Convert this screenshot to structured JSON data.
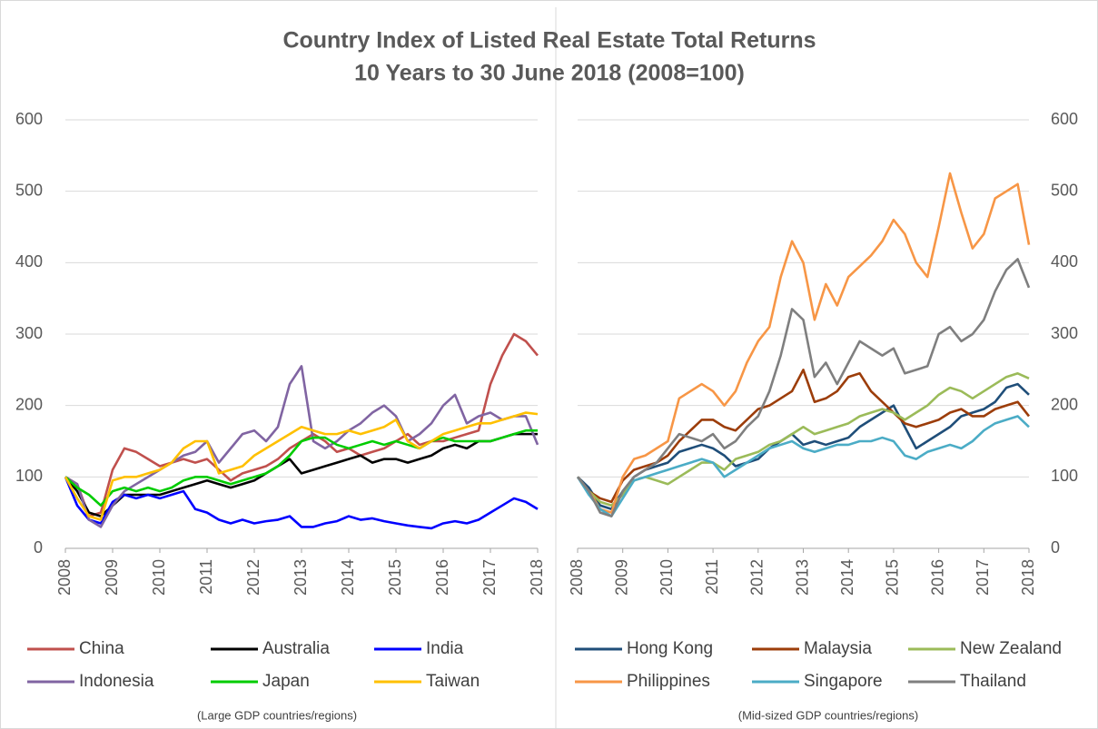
{
  "title": "Country Index of Listed Real Estate Total Returns",
  "subtitle": "10 Years to 30 June 2018 (2008=100)",
  "chart_data": [
    {
      "type": "line",
      "note": "(Large GDP countries/regions)",
      "yaxis_side": "left",
      "grid": true,
      "x": [
        2008,
        2008.25,
        2008.5,
        2008.75,
        2009,
        2009.25,
        2009.5,
        2009.75,
        2010,
        2010.25,
        2010.5,
        2010.75,
        2011,
        2011.25,
        2011.5,
        2011.75,
        2012,
        2012.25,
        2012.5,
        2012.75,
        2013,
        2013.25,
        2013.5,
        2013.75,
        2014,
        2014.25,
        2014.5,
        2014.75,
        2015,
        2015.25,
        2015.5,
        2015.75,
        2016,
        2016.25,
        2016.5,
        2016.75,
        2017,
        2017.25,
        2017.5,
        2017.75,
        2018
      ],
      "xlim": [
        2008,
        2018
      ],
      "xticks": [
        2008,
        2009,
        2010,
        2011,
        2012,
        2013,
        2014,
        2015,
        2016,
        2017,
        2018
      ],
      "ylim": [
        0,
        600
      ],
      "yticks": [
        0,
        100,
        200,
        300,
        400,
        500,
        600
      ],
      "series": [
        {
          "name": "China",
          "color": "#c0504d",
          "values": [
            100,
            90,
            45,
            50,
            110,
            140,
            135,
            125,
            115,
            120,
            125,
            120,
            125,
            110,
            95,
            105,
            110,
            115,
            125,
            140,
            150,
            160,
            150,
            135,
            140,
            130,
            135,
            140,
            150,
            160,
            145,
            150,
            150,
            155,
            160,
            165,
            230,
            270,
            300,
            290,
            270
          ]
        },
        {
          "name": "Australia",
          "color": "#000000",
          "values": [
            100,
            80,
            50,
            45,
            60,
            75,
            75,
            75,
            75,
            80,
            85,
            90,
            95,
            90,
            85,
            90,
            95,
            105,
            115,
            125,
            105,
            110,
            115,
            120,
            125,
            130,
            120,
            125,
            125,
            120,
            125,
            130,
            140,
            145,
            140,
            150,
            150,
            155,
            160,
            160,
            160
          ]
        },
        {
          "name": "India",
          "color": "#0000ff",
          "values": [
            100,
            60,
            40,
            35,
            65,
            75,
            70,
            75,
            70,
            75,
            80,
            55,
            50,
            40,
            35,
            40,
            35,
            38,
            40,
            45,
            30,
            30,
            35,
            38,
            45,
            40,
            42,
            38,
            35,
            32,
            30,
            28,
            35,
            38,
            35,
            40,
            50,
            60,
            70,
            65,
            55
          ]
        },
        {
          "name": "Indonesia",
          "color": "#8064a2",
          "values": [
            100,
            90,
            40,
            30,
            60,
            80,
            90,
            100,
            110,
            120,
            130,
            135,
            150,
            120,
            140,
            160,
            165,
            150,
            170,
            230,
            255,
            150,
            140,
            150,
            165,
            175,
            190,
            200,
            185,
            150,
            160,
            175,
            200,
            215,
            175,
            185,
            190,
            180,
            185,
            185,
            145
          ]
        },
        {
          "name": "Japan",
          "color": "#00cc00",
          "values": [
            100,
            85,
            75,
            60,
            80,
            85,
            80,
            85,
            80,
            85,
            95,
            100,
            100,
            95,
            90,
            95,
            100,
            105,
            115,
            130,
            150,
            155,
            155,
            145,
            140,
            145,
            150,
            145,
            150,
            145,
            140,
            150,
            155,
            150,
            150,
            150,
            150,
            155,
            160,
            165,
            165
          ]
        },
        {
          "name": "Taiwan",
          "color": "#ffc000",
          "values": [
            100,
            70,
            45,
            40,
            95,
            100,
            100,
            105,
            110,
            120,
            140,
            150,
            150,
            105,
            110,
            115,
            130,
            140,
            150,
            160,
            170,
            165,
            160,
            160,
            165,
            160,
            165,
            170,
            180,
            150,
            140,
            150,
            160,
            165,
            170,
            175,
            175,
            180,
            185,
            190,
            188
          ]
        }
      ]
    },
    {
      "type": "line",
      "note": "(Mid-sized GDP countries/regions)",
      "yaxis_side": "right",
      "grid": true,
      "x": [
        2008,
        2008.25,
        2008.5,
        2008.75,
        2009,
        2009.25,
        2009.5,
        2009.75,
        2010,
        2010.25,
        2010.5,
        2010.75,
        2011,
        2011.25,
        2011.5,
        2011.75,
        2012,
        2012.25,
        2012.5,
        2012.75,
        2013,
        2013.25,
        2013.5,
        2013.75,
        2014,
        2014.25,
        2014.5,
        2014.75,
        2015,
        2015.25,
        2015.5,
        2015.75,
        2016,
        2016.25,
        2016.5,
        2016.75,
        2017,
        2017.25,
        2017.5,
        2017.75,
        2018
      ],
      "xlim": [
        2008,
        2018
      ],
      "xticks": [
        2008,
        2009,
        2010,
        2011,
        2012,
        2013,
        2014,
        2015,
        2016,
        2017,
        2018
      ],
      "ylim": [
        0,
        600
      ],
      "yticks": [
        0,
        100,
        200,
        300,
        400,
        500,
        600
      ],
      "series": [
        {
          "name": "Hong Kong",
          "color": "#1f4e79",
          "values": [
            100,
            85,
            60,
            55,
            80,
            100,
            110,
            115,
            120,
            135,
            140,
            145,
            140,
            130,
            115,
            120,
            125,
            140,
            150,
            160,
            145,
            150,
            145,
            150,
            155,
            170,
            180,
            190,
            200,
            170,
            140,
            150,
            160,
            170,
            185,
            190,
            195,
            205,
            225,
            230,
            215
          ]
        },
        {
          "name": "Malaysia",
          "color": "#9c3d0a",
          "values": [
            100,
            80,
            70,
            65,
            95,
            110,
            115,
            120,
            130,
            150,
            165,
            180,
            180,
            170,
            165,
            180,
            195,
            200,
            210,
            220,
            250,
            205,
            210,
            220,
            240,
            245,
            220,
            205,
            190,
            175,
            170,
            175,
            180,
            190,
            195,
            185,
            185,
            195,
            200,
            205,
            185
          ]
        },
        {
          "name": "New Zealand",
          "color": "#9bbb59",
          "values": [
            100,
            80,
            65,
            60,
            75,
            95,
            100,
            95,
            90,
            100,
            110,
            120,
            120,
            110,
            125,
            130,
            135,
            145,
            150,
            160,
            170,
            160,
            165,
            170,
            175,
            185,
            190,
            195,
            190,
            180,
            190,
            200,
            215,
            225,
            220,
            210,
            220,
            230,
            240,
            245,
            238
          ]
        },
        {
          "name": "Philippines",
          "color": "#f79646",
          "values": [
            100,
            80,
            55,
            50,
            100,
            125,
            130,
            140,
            150,
            210,
            220,
            230,
            220,
            200,
            220,
            260,
            290,
            310,
            380,
            430,
            400,
            320,
            370,
            340,
            380,
            395,
            410,
            430,
            460,
            440,
            400,
            380,
            450,
            525,
            470,
            420,
            440,
            490,
            500,
            510,
            425
          ]
        },
        {
          "name": "Singapore",
          "color": "#4bacc6",
          "values": [
            100,
            75,
            55,
            45,
            70,
            95,
            100,
            105,
            110,
            115,
            120,
            125,
            120,
            100,
            110,
            120,
            130,
            140,
            145,
            150,
            140,
            135,
            140,
            145,
            145,
            150,
            150,
            155,
            150,
            130,
            125,
            135,
            140,
            145,
            140,
            150,
            165,
            175,
            180,
            185,
            170
          ]
        },
        {
          "name": "Thailand",
          "color": "#7f7f7f",
          "values": [
            100,
            80,
            50,
            45,
            80,
            100,
            110,
            120,
            140,
            160,
            155,
            150,
            160,
            140,
            150,
            170,
            185,
            220,
            270,
            335,
            320,
            240,
            260,
            230,
            260,
            290,
            280,
            270,
            280,
            245,
            250,
            255,
            300,
            310,
            290,
            300,
            320,
            360,
            390,
            405,
            365
          ]
        }
      ]
    }
  ]
}
